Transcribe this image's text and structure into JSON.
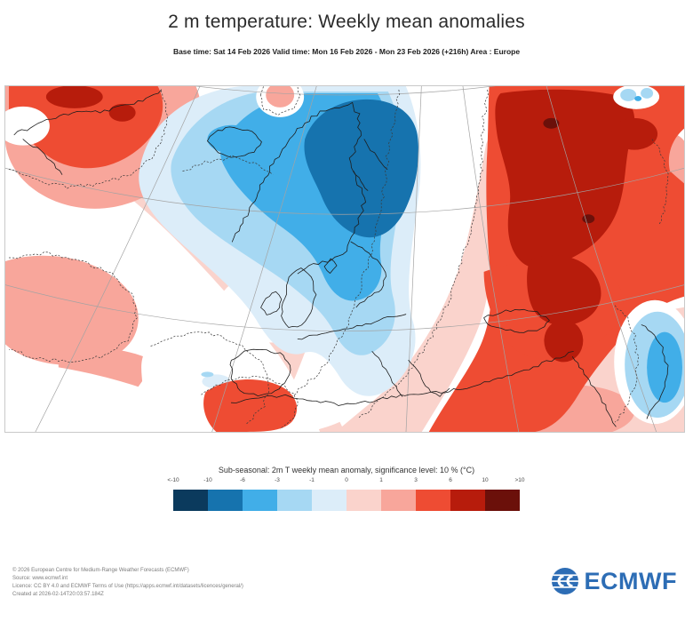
{
  "header": {
    "title": "2 m temperature: Weekly mean anomalies",
    "subtitle": "Base time: Sat 14 Feb 2026 Valid time: Mon 16 Feb 2026 - Mon 23 Feb 2026 (+216h) Area : Europe"
  },
  "legend": {
    "title": "Sub-seasonal: 2m T weekly mean anomaly, significance level: 10 % (°C)",
    "tick_labels": [
      "<-10",
      "-10",
      "-6",
      "-3",
      "-1",
      "0",
      "1",
      "3",
      "6",
      "10",
      ">10"
    ],
    "colors": [
      "#0b3a5d",
      "#1673ae",
      "#41aee8",
      "#a6d8f3",
      "#dcedf9",
      "#fad3cc",
      "#f8a69b",
      "#ee4c33",
      "#b71c0c",
      "#6b100a"
    ],
    "units": "°C"
  },
  "map": {
    "area": "Europe",
    "grid_color": "#a3a3a3"
  },
  "footer": {
    "lines": [
      "© 2026 European Centre for Medium-Range Weather Forecasts (ECMWF)",
      "Source: www.ecmwf.int",
      "Licence: CC BY 4.0 and ECMWF Terms of Use (https://apps.ecmwf.int/datasets/licences/general/)",
      "Created at 2026-02-14T20:03:57.184Z"
    ]
  },
  "logo": {
    "text": "ECMWF",
    "color": "#2d6db5"
  }
}
